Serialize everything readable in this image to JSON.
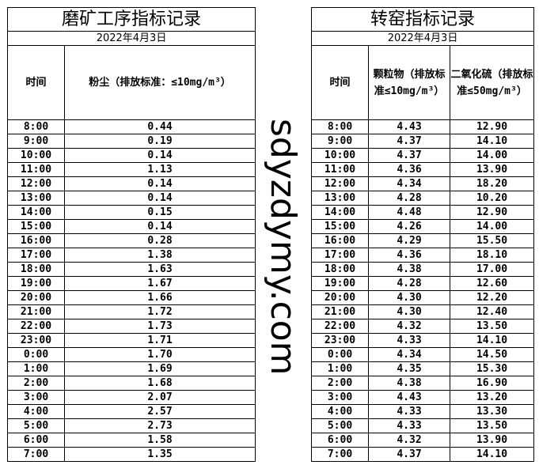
{
  "grinding": {
    "title": "磨矿工序指标记录",
    "date": "2022年4月3日",
    "headers": {
      "time": "时间",
      "dust": "粉尘（排放标准：≤10mg/m³）"
    },
    "rows": [
      [
        "8:00",
        "0.44"
      ],
      [
        "9:00",
        "0.19"
      ],
      [
        "10:00",
        "0.14"
      ],
      [
        "11:00",
        "1.13"
      ],
      [
        "12:00",
        "0.14"
      ],
      [
        "13:00",
        "0.14"
      ],
      [
        "14:00",
        "0.15"
      ],
      [
        "15:00",
        "0.14"
      ],
      [
        "16:00",
        "0.28"
      ],
      [
        "17:00",
        "1.38"
      ],
      [
        "18:00",
        "1.63"
      ],
      [
        "19:00",
        "1.67"
      ],
      [
        "20:00",
        "1.66"
      ],
      [
        "21:00",
        "1.72"
      ],
      [
        "22:00",
        "1.73"
      ],
      [
        "23:00",
        "1.71"
      ],
      [
        "0:00",
        "1.70"
      ],
      [
        "1:00",
        "1.69"
      ],
      [
        "2:00",
        "1.68"
      ],
      [
        "3:00",
        "2.07"
      ],
      [
        "4:00",
        "2.57"
      ],
      [
        "5:00",
        "2.73"
      ],
      [
        "6:00",
        "1.58"
      ],
      [
        "7:00",
        "1.35"
      ]
    ]
  },
  "kiln": {
    "title": "转窑指标记录",
    "date": "2022年4月3日",
    "headers": {
      "time": "时间",
      "particulate": "颗粒物（排放标准≤10mg/m³）",
      "so2": "二氧化硫（排放标准≤50mg/m³）"
    },
    "rows": [
      [
        "8:00",
        "4.43",
        "12.90"
      ],
      [
        "9:00",
        "4.37",
        "14.10"
      ],
      [
        "10:00",
        "4.37",
        "14.00"
      ],
      [
        "11:00",
        "4.36",
        "13.90"
      ],
      [
        "12:00",
        "4.34",
        "18.20"
      ],
      [
        "13:00",
        "4.28",
        "10.20"
      ],
      [
        "14:00",
        "4.48",
        "12.90"
      ],
      [
        "15:00",
        "4.26",
        "14.00"
      ],
      [
        "16:00",
        "4.29",
        "15.50"
      ],
      [
        "17:00",
        "4.36",
        "18.10"
      ],
      [
        "18:00",
        "4.38",
        "17.00"
      ],
      [
        "19:00",
        "4.28",
        "12.60"
      ],
      [
        "20:00",
        "4.30",
        "12.20"
      ],
      [
        "21:00",
        "4.30",
        "12.40"
      ],
      [
        "22:00",
        "4.32",
        "13.50"
      ],
      [
        "23:00",
        "4.33",
        "14.10"
      ],
      [
        "0:00",
        "4.34",
        "14.50"
      ],
      [
        "1:00",
        "4.35",
        "15.30"
      ],
      [
        "2:00",
        "4.38",
        "16.90"
      ],
      [
        "3:00",
        "4.43",
        "13.20"
      ],
      [
        "4:00",
        "4.33",
        "13.30"
      ],
      [
        "5:00",
        "4.33",
        "13.50"
      ],
      [
        "6:00",
        "4.32",
        "13.90"
      ],
      [
        "7:00",
        "4.37",
        "14.10"
      ]
    ]
  },
  "watermark": "sdyzdymy.com"
}
